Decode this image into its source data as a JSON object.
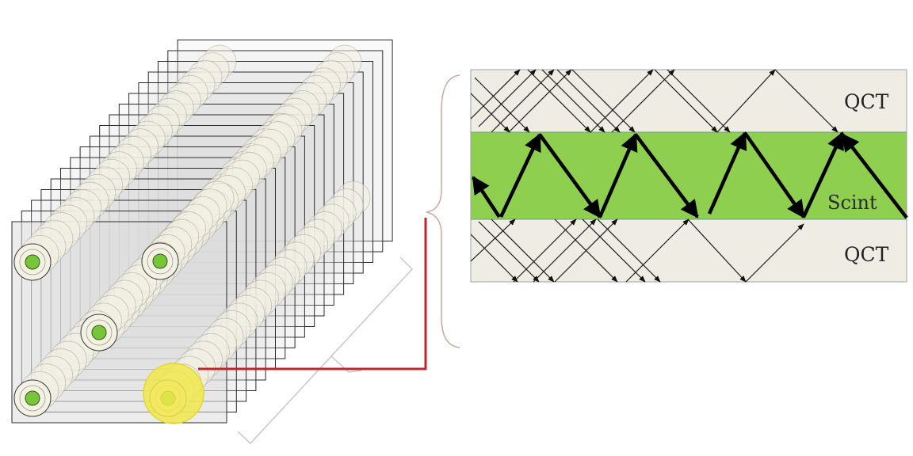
{
  "labels": {
    "top": "QCT",
    "middle": "Scint",
    "bottom": "QCT"
  },
  "colors": {
    "qct_layer": "#efece4",
    "scint_layer": "#8fcf50",
    "fiber_core": "#77c63a",
    "fiber_cladding": "#f3f1e3",
    "highlight": "#f1e74a",
    "plate_fill": "#dddddd",
    "connector_line": "#c0272d",
    "bracket": "#c7a9a4",
    "arrow_thick": "#000000",
    "arrow_thin": "#1a1a1a"
  },
  "icons": {
    "fiber_end": "fiber-end-icon",
    "highlight": "highlight-circle-icon"
  }
}
